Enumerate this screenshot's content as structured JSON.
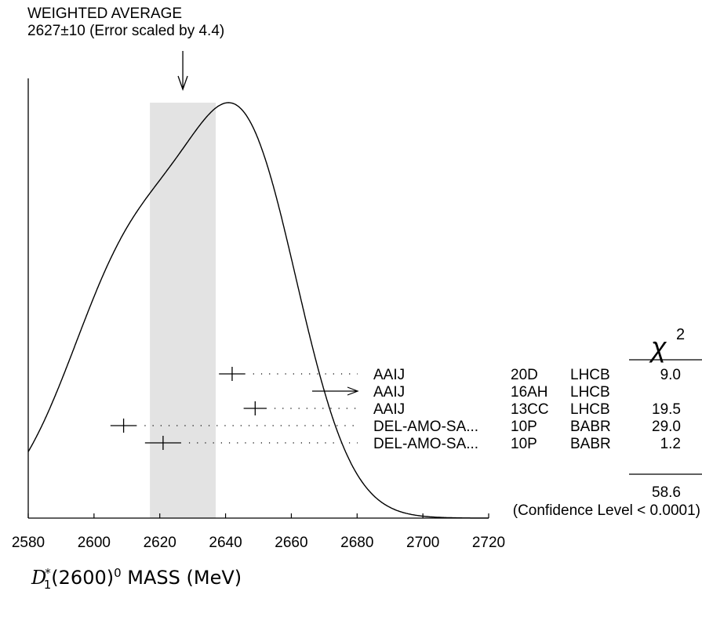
{
  "header": {
    "line1": "WEIGHTED AVERAGE",
    "line2": "2627±10 (Error scaled by 4.4)"
  },
  "xaxis_label": {
    "symbol": "D",
    "subscript": "1",
    "superscript_star": "*",
    "state": "(2600)",
    "charge": "0",
    "text": "MASS (MeV)"
  },
  "chi2_header": "χ",
  "chi2_power": "2",
  "chart_data": {
    "type": "ideogram",
    "title": "WEIGHTED AVERAGE",
    "subtitle": "2627±10 (Error scaled by 4.4)",
    "xlabel": "D*1(2600)0 MASS (MeV)",
    "xlim": [
      2580,
      2720
    ],
    "xticks": [
      2580,
      2600,
      2620,
      2640,
      2660,
      2680,
      2700,
      2720
    ],
    "weighted_average": {
      "value": 2627,
      "error": 10,
      "scale_factor": 4.4
    },
    "measurements": [
      {
        "author": "AAIJ",
        "ref": "20D",
        "tecn": "LHCB",
        "value": 2642,
        "error": 4,
        "chi2": "9.0",
        "used": true
      },
      {
        "author": "AAIJ",
        "ref": "16AH",
        "tecn": "LHCB",
        "value": null,
        "error": null,
        "chi2": "",
        "used": false
      },
      {
        "author": "AAIJ",
        "ref": "13CC",
        "tecn": "LHCB",
        "value": 2649,
        "error": 3.5,
        "chi2": "19.5",
        "used": true
      },
      {
        "author": "DEL-AMO-SA...",
        "ref": "10P",
        "tecn": "BABR",
        "value": 2609,
        "error": 4,
        "chi2": "29.0",
        "used": true
      },
      {
        "author": "DEL-AMO-SA...",
        "ref": "10P",
        "tecn": "BABR",
        "value": 2621,
        "error": 5.5,
        "chi2": "1.2",
        "used": true
      }
    ],
    "chi2_total": "58.6",
    "confidence_level": "(Confidence Level < 0.0001)"
  }
}
